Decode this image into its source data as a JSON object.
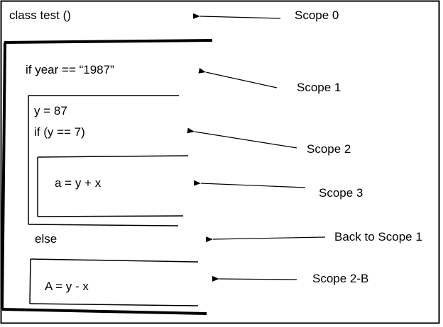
{
  "colors": {
    "background": "#ffffff",
    "ink": "#000000"
  },
  "code": {
    "class_decl": "class test ()",
    "if_year": "if year == “1987”",
    "assign_y": "y = 87",
    "if_y": "if (y == 7)",
    "assign_a_plus": "a = y + x",
    "else_kw": "else",
    "assign_a_minus": "A = y - x"
  },
  "scopes": {
    "scope0": "Scope 0",
    "scope1": "Scope 1",
    "scope2": "Scope 2",
    "scope3": "Scope 3",
    "back1": "Back to Scope 1",
    "scope2b": "Scope 2-B"
  }
}
